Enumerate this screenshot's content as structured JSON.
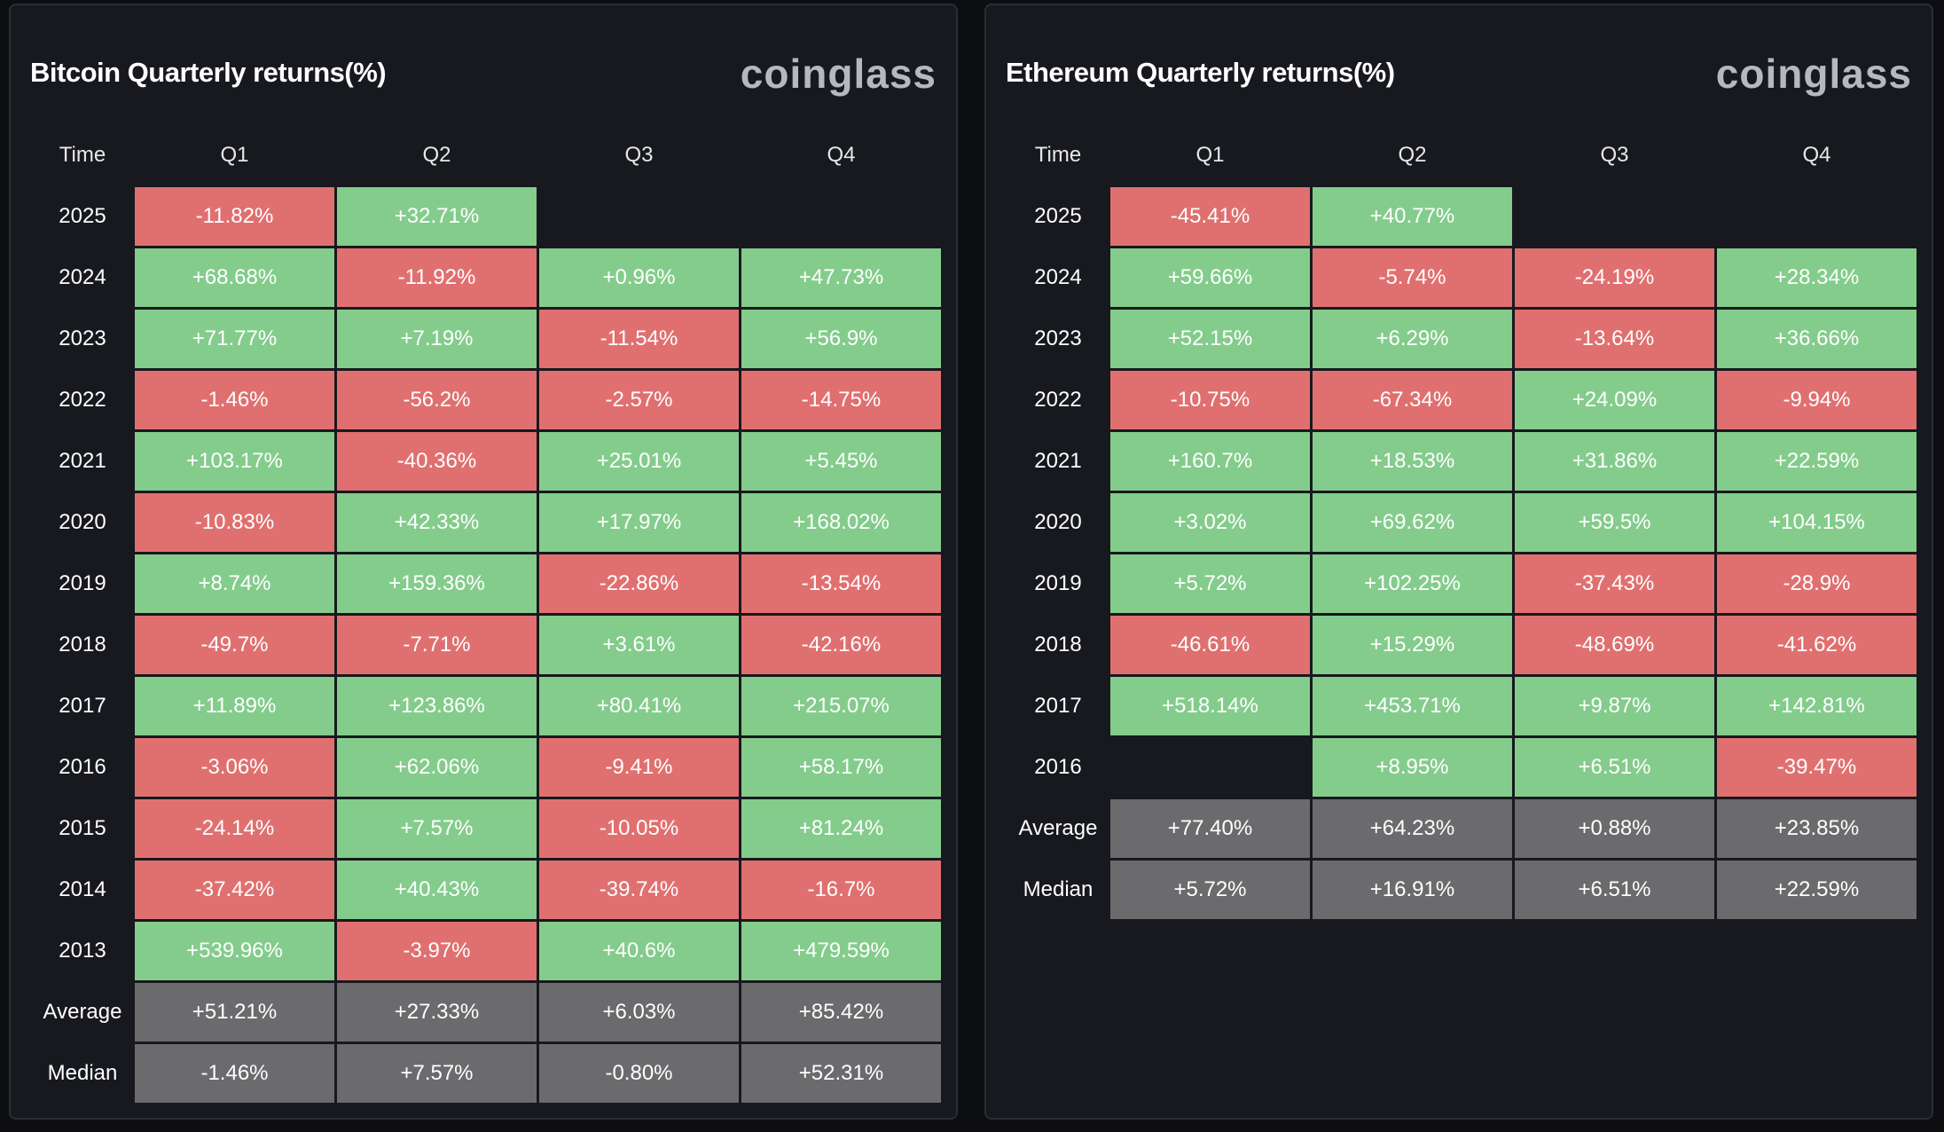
{
  "colors": {
    "positive": "#84cc8c",
    "negative": "#e07070",
    "summary": "#6b6b6e",
    "background": "#17191e"
  },
  "bitcoin": {
    "title": "Bitcoin Quarterly returns(%)",
    "brand": "coinglass",
    "headers": [
      "Time",
      "Q1",
      "Q2",
      "Q3",
      "Q4"
    ],
    "rows": [
      {
        "label": "2025",
        "values": [
          "-11.82%",
          "+32.71%",
          "",
          ""
        ]
      },
      {
        "label": "2024",
        "values": [
          "+68.68%",
          "-11.92%",
          "+0.96%",
          "+47.73%"
        ]
      },
      {
        "label": "2023",
        "values": [
          "+71.77%",
          "+7.19%",
          "-11.54%",
          "+56.9%"
        ]
      },
      {
        "label": "2022",
        "values": [
          "-1.46%",
          "-56.2%",
          "-2.57%",
          "-14.75%"
        ]
      },
      {
        "label": "2021",
        "values": [
          "+103.17%",
          "-40.36%",
          "+25.01%",
          "+5.45%"
        ]
      },
      {
        "label": "2020",
        "values": [
          "-10.83%",
          "+42.33%",
          "+17.97%",
          "+168.02%"
        ]
      },
      {
        "label": "2019",
        "values": [
          "+8.74%",
          "+159.36%",
          "-22.86%",
          "-13.54%"
        ]
      },
      {
        "label": "2018",
        "values": [
          "-49.7%",
          "-7.71%",
          "+3.61%",
          "-42.16%"
        ]
      },
      {
        "label": "2017",
        "values": [
          "+11.89%",
          "+123.86%",
          "+80.41%",
          "+215.07%"
        ]
      },
      {
        "label": "2016",
        "values": [
          "-3.06%",
          "+62.06%",
          "-9.41%",
          "+58.17%"
        ]
      },
      {
        "label": "2015",
        "values": [
          "-24.14%",
          "+7.57%",
          "-10.05%",
          "+81.24%"
        ]
      },
      {
        "label": "2014",
        "values": [
          "-37.42%",
          "+40.43%",
          "-39.74%",
          "-16.7%"
        ]
      },
      {
        "label": "2013",
        "values": [
          "+539.96%",
          "-3.97%",
          "+40.6%",
          "+479.59%"
        ]
      },
      {
        "label": "Average",
        "values": [
          "+51.21%",
          "+27.33%",
          "+6.03%",
          "+85.42%"
        ],
        "summary": true
      },
      {
        "label": "Median",
        "values": [
          "-1.46%",
          "+7.57%",
          "-0.80%",
          "+52.31%"
        ],
        "summary": true
      }
    ]
  },
  "ethereum": {
    "title": "Ethereum Quarterly returns(%)",
    "brand": "coinglass",
    "headers": [
      "Time",
      "Q1",
      "Q2",
      "Q3",
      "Q4"
    ],
    "rows": [
      {
        "label": "2025",
        "values": [
          "-45.41%",
          "+40.77%",
          "",
          ""
        ]
      },
      {
        "label": "2024",
        "values": [
          "+59.66%",
          "-5.74%",
          "-24.19%",
          "+28.34%"
        ]
      },
      {
        "label": "2023",
        "values": [
          "+52.15%",
          "+6.29%",
          "-13.64%",
          "+36.66%"
        ]
      },
      {
        "label": "2022",
        "values": [
          "-10.75%",
          "-67.34%",
          "+24.09%",
          "-9.94%"
        ]
      },
      {
        "label": "2021",
        "values": [
          "+160.7%",
          "+18.53%",
          "+31.86%",
          "+22.59%"
        ]
      },
      {
        "label": "2020",
        "values": [
          "+3.02%",
          "+69.62%",
          "+59.5%",
          "+104.15%"
        ]
      },
      {
        "label": "2019",
        "values": [
          "+5.72%",
          "+102.25%",
          "-37.43%",
          "-28.9%"
        ]
      },
      {
        "label": "2018",
        "values": [
          "-46.61%",
          "+15.29%",
          "-48.69%",
          "-41.62%"
        ]
      },
      {
        "label": "2017",
        "values": [
          "+518.14%",
          "+453.71%",
          "+9.87%",
          "+142.81%"
        ]
      },
      {
        "label": "2016",
        "values": [
          "",
          "+8.95%",
          "+6.51%",
          "-39.47%"
        ]
      },
      {
        "label": "Average",
        "values": [
          "+77.40%",
          "+64.23%",
          "+0.88%",
          "+23.85%"
        ],
        "summary": true
      },
      {
        "label": "Median",
        "values": [
          "+5.72%",
          "+16.91%",
          "+6.51%",
          "+22.59%"
        ],
        "summary": true
      }
    ]
  }
}
